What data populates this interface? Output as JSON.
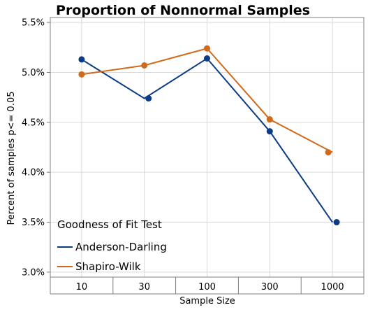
{
  "colors": {
    "anderson": "#0d3b86",
    "shapiro": "#d06a1c",
    "grid": "#d9d9d9",
    "frame": "#7f7f7f"
  },
  "chart_data": {
    "type": "line",
    "title": "Proportion of Nonnormal Samples",
    "xlabel": "Sample Size",
    "ylabel": "Percent of samples p<= 0.05",
    "categories": [
      "10",
      "30",
      "100",
      "300",
      "1000"
    ],
    "ylim": [
      2.95,
      5.55
    ],
    "y_ticks": [
      3.0,
      3.5,
      4.0,
      4.5,
      5.0,
      5.5
    ],
    "y_tick_labels": [
      "3.0%",
      "3.5%",
      "4.0%",
      "4.5%",
      "5.0%",
      "5.5%"
    ],
    "grid": true,
    "legend": {
      "title": "Goodness of Fit Test",
      "placement": "bottom-left"
    },
    "series": [
      {
        "name": "Anderson-Darling",
        "color_key": "anderson",
        "points": [
          5.13,
          4.74,
          5.14,
          4.41,
          3.5
        ],
        "line": [
          5.13,
          4.74,
          5.14,
          4.41,
          3.5
        ]
      },
      {
        "name": "Shapiro-Wilk",
        "color_key": "shapiro",
        "points": [
          4.98,
          5.07,
          5.24,
          4.53,
          4.2
        ],
        "line": [
          4.98,
          5.07,
          5.24,
          4.53,
          4.2
        ]
      }
    ]
  }
}
